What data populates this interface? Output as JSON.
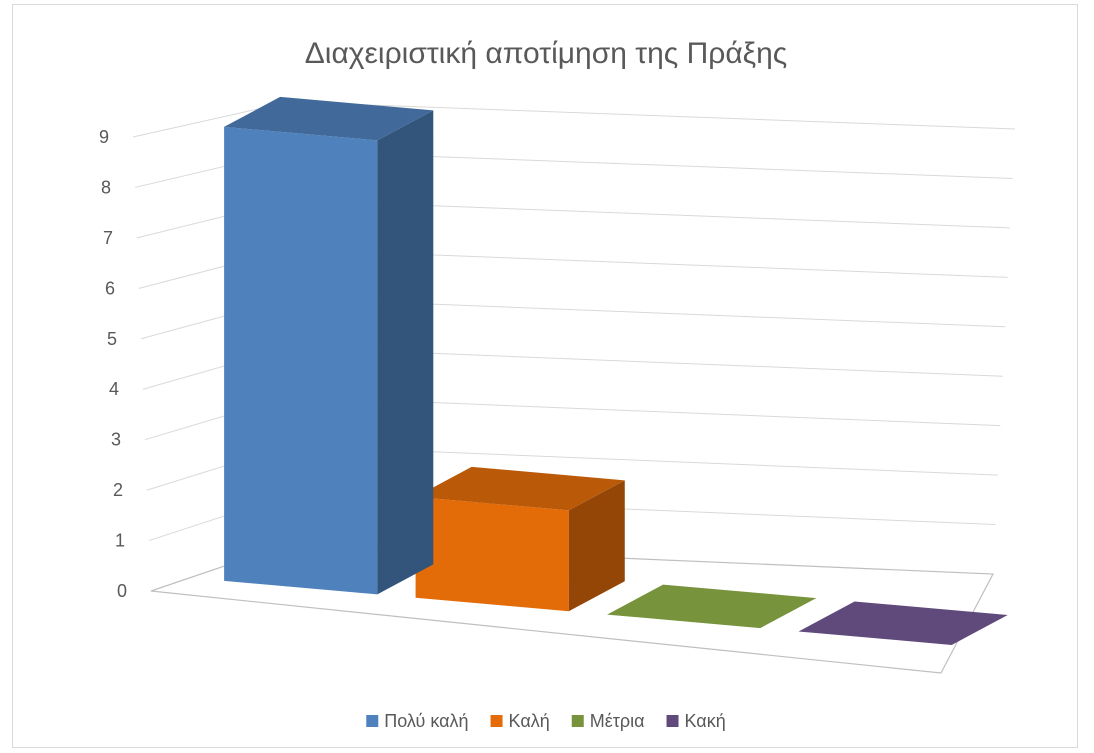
{
  "chart_data": {
    "type": "bar",
    "title": "Διαχειριστική αποτίμηση της Πράξης",
    "xlabel": "",
    "ylabel": "",
    "categories": [
      "Πολύ καλή",
      "Καλή",
      "Μέτρια",
      "Κακή"
    ],
    "values": [
      9,
      2,
      0,
      0
    ],
    "ylim": [
      0,
      9
    ],
    "yticks": [
      "0",
      "1",
      "2",
      "3",
      "4",
      "5",
      "6",
      "7",
      "8",
      "9"
    ],
    "grid": true,
    "legend_position": "bottom",
    "style": "3d-column",
    "colors": [
      "#4F81BD",
      "#E36C09",
      "#77933C",
      "#604A7B"
    ]
  }
}
